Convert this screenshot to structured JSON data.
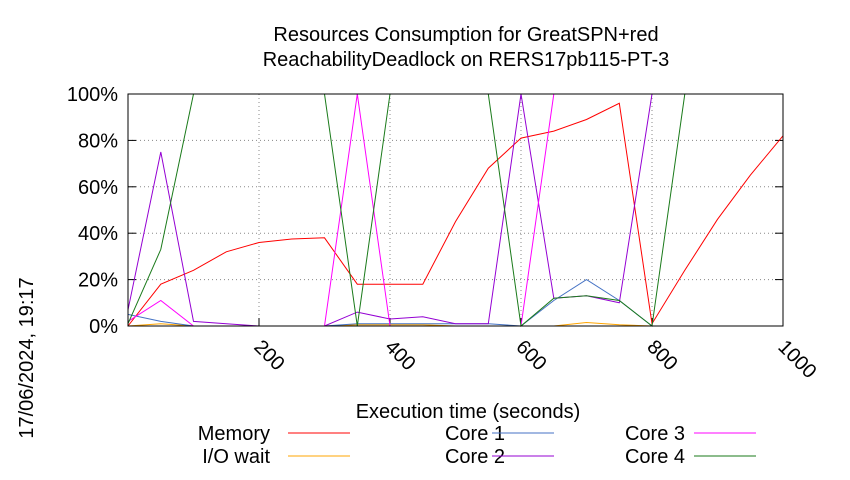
{
  "chart_data": {
    "type": "line",
    "title_line1": "Resources Consumption for GreatSPN+red",
    "title_line2": "ReachabilityDeadlock on RERS17pb115-PT-3",
    "xlabel": "Execution time (seconds)",
    "ylabel": "",
    "side_label": "17/06/2024, 19:17",
    "xlim": [
      0,
      1000
    ],
    "ylim": [
      0,
      100
    ],
    "x_ticks": [
      200,
      400,
      600,
      800,
      1000
    ],
    "x_tick_labels": [
      "200",
      "400",
      "600",
      "800",
      "1000"
    ],
    "y_ticks": [
      0,
      20,
      40,
      60,
      80,
      100
    ],
    "y_tick_labels": [
      "0%",
      "20%",
      "40%",
      "60%",
      "80%",
      "100%"
    ],
    "grid": true,
    "legend_position": "bottom",
    "series": [
      {
        "name": "Memory",
        "color": "#ff0000",
        "x": [
          0,
          50,
          100,
          150,
          200,
          250,
          300,
          350,
          400,
          450,
          500,
          550,
          600,
          650,
          700,
          750,
          800,
          850,
          900,
          950,
          1000
        ],
        "y": [
          0,
          18,
          24,
          32,
          36,
          37.5,
          38,
          18,
          18,
          18,
          45,
          68,
          81,
          84,
          89,
          96,
          1,
          24,
          46,
          65,
          82
        ]
      },
      {
        "name": "I/O wait",
        "color": "#ffa500",
        "x": [
          0,
          50,
          100,
          150,
          200,
          250,
          300,
          350,
          400,
          450,
          500,
          550,
          600,
          650,
          700,
          750,
          800
        ],
        "y": [
          0,
          1,
          0,
          0,
          0,
          0,
          0,
          0.5,
          0.5,
          0.5,
          0,
          0,
          0,
          0,
          1.5,
          0.5,
          0
        ]
      },
      {
        "name": "Core 1",
        "color": "#4472c4",
        "x": [
          0,
          50,
          100,
          150,
          200,
          250,
          300,
          350,
          400,
          450,
          500,
          550,
          600,
          650,
          700,
          750,
          800
        ],
        "y": [
          5,
          2,
          0,
          0,
          0,
          0,
          0,
          1,
          1,
          1,
          1,
          1,
          0,
          11,
          20,
          11,
          0
        ]
      },
      {
        "name": "Core 2",
        "color": "#9400d3",
        "x": [
          0,
          50,
          100,
          150,
          200,
          250,
          300,
          350,
          400,
          450,
          500,
          550,
          600,
          650,
          700,
          750,
          800,
          850
        ],
        "y": [
          7,
          75,
          2,
          1,
          0,
          0,
          0,
          6,
          3,
          4,
          1,
          1,
          100,
          12,
          13,
          10,
          100,
          100
        ]
      },
      {
        "name": "Core 3",
        "color": "#ff00ff",
        "x": [
          0,
          50,
          100,
          150,
          200,
          250,
          300,
          350,
          400,
          450,
          500,
          550,
          600,
          650,
          700,
          750,
          800,
          850
        ],
        "y": [
          2,
          11,
          0,
          0,
          0,
          0,
          0,
          100,
          0,
          0,
          0,
          0,
          0,
          100,
          100,
          100,
          100,
          100
        ]
      },
      {
        "name": "Core 4",
        "color": "#1a7a1a",
        "x": [
          0,
          50,
          100,
          150,
          200,
          250,
          300,
          350,
          400,
          450,
          500,
          550,
          600,
          650,
          700,
          750,
          800,
          850,
          900,
          950,
          1000
        ],
        "y": [
          1,
          33,
          100,
          100,
          100,
          100,
          100,
          0,
          100,
          100,
          100,
          100,
          0,
          12,
          13,
          11,
          0,
          100,
          100,
          100,
          100
        ]
      }
    ],
    "legend": [
      {
        "name": "Memory",
        "color": "#ff0000"
      },
      {
        "name": "Core 1",
        "color": "#4472c4"
      },
      {
        "name": "Core 3",
        "color": "#ff00ff"
      },
      {
        "name": "I/O wait",
        "color": "#ffa500"
      },
      {
        "name": "Core 2",
        "color": "#9400d3"
      },
      {
        "name": "Core 4",
        "color": "#1a7a1a"
      }
    ]
  }
}
